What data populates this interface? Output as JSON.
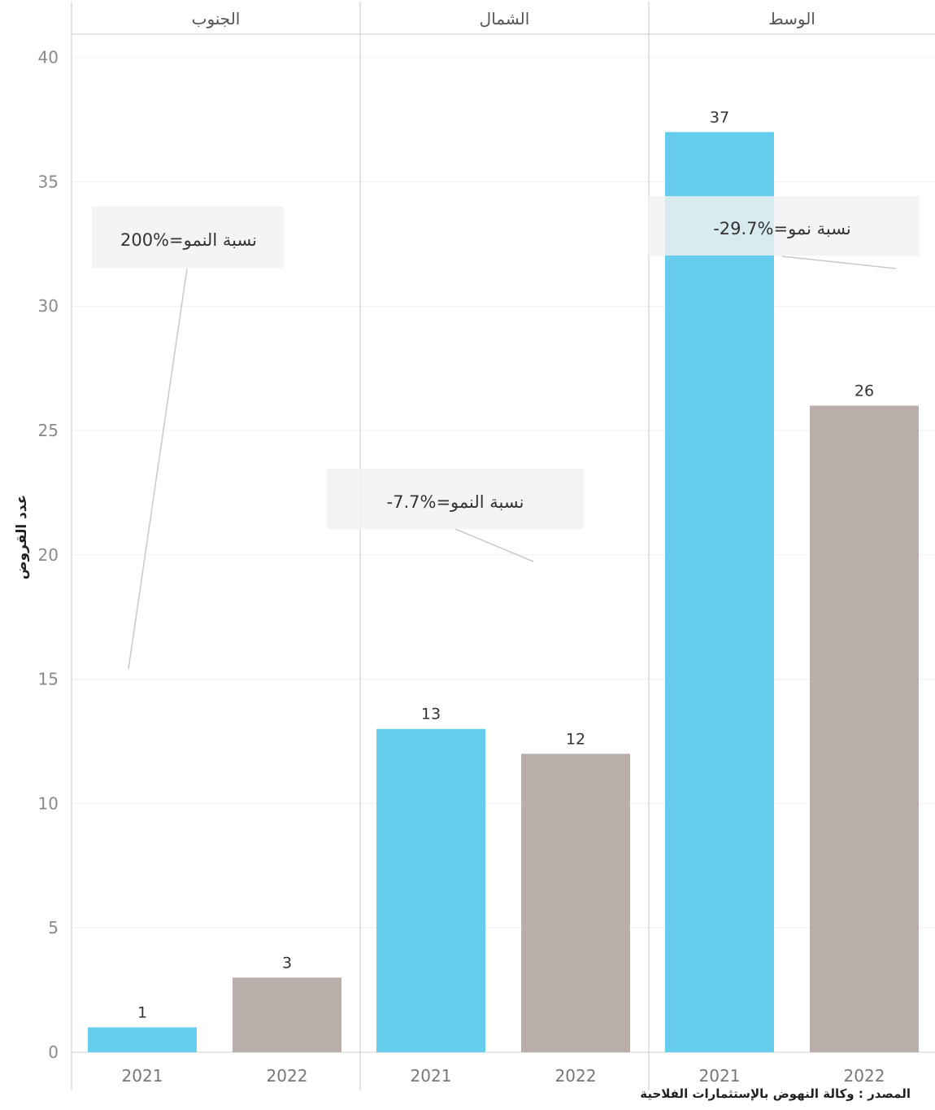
{
  "chart_data": {
    "type": "bar",
    "ylabel": "عدد القروض",
    "ylim": [
      0,
      41
    ],
    "yticks": [
      0,
      5,
      10,
      15,
      20,
      25,
      30,
      35,
      40
    ],
    "grid": true,
    "series_colors": {
      "2021": "#67cdec",
      "2022": "#b9aeaa"
    },
    "panels": [
      {
        "name": "الجنوب",
        "categories": [
          "2021",
          "2022"
        ],
        "values": [
          1,
          3
        ],
        "annotation": "200%=نسبة النمو"
      },
      {
        "name": "الشمال",
        "categories": [
          "2021",
          "2022"
        ],
        "values": [
          13,
          12
        ],
        "annotation": "-7.7%=نسبة النمو"
      },
      {
        "name": "الوسط",
        "categories": [
          "2021",
          "2022"
        ],
        "values": [
          37,
          26
        ],
        "annotation": "-29.7%=نسبة نمو"
      }
    ]
  },
  "source": "المصدر : وكالة النهوض بالإستثمارات الفلاحية"
}
